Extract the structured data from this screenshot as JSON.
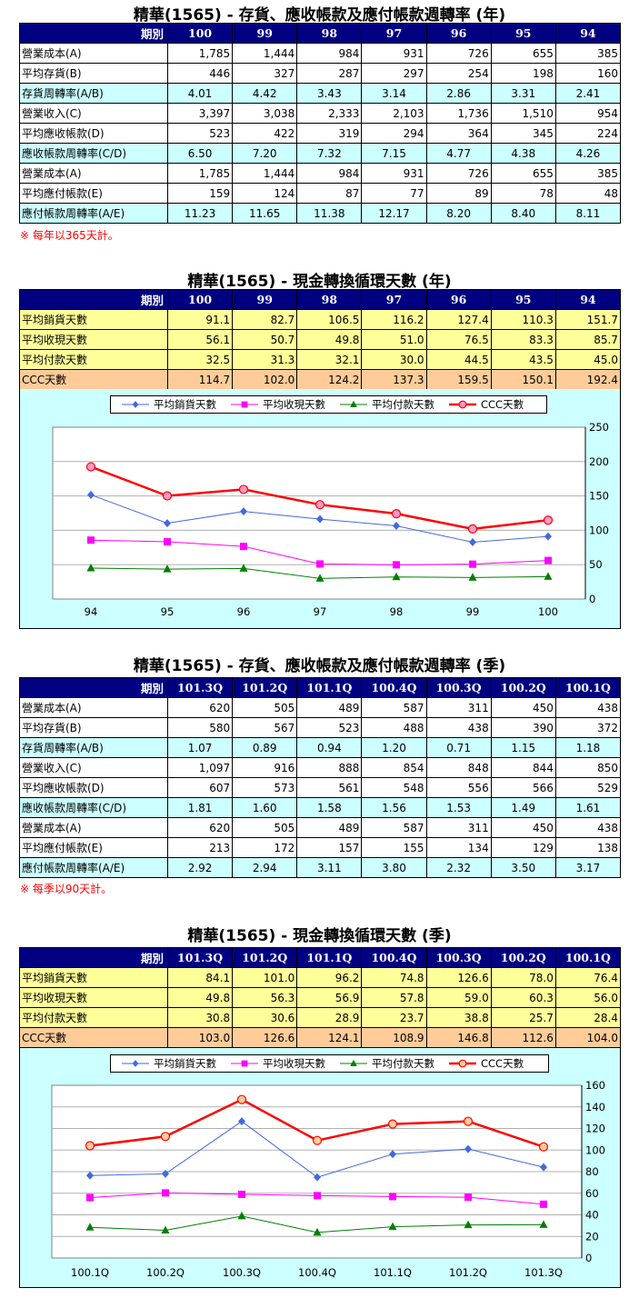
{
  "sections": {
    "annual_turnover": {
      "title": "精華(1565) -  存貨、應收帳款及應付帳款週轉率 (年)",
      "corner_label": "期別",
      "columns": [
        "100",
        "99",
        "98",
        "97",
        "96",
        "95",
        "94"
      ],
      "rows": [
        {
          "label": "營業成本(A)",
          "values": [
            "1,785",
            "1,444",
            "984",
            "931",
            "726",
            "655",
            "385"
          ],
          "type": "plain"
        },
        {
          "label": "平均存貨(B)",
          "values": [
            "446",
            "327",
            "287",
            "297",
            "254",
            "198",
            "160"
          ],
          "type": "plain"
        },
        {
          "label": "存貨周轉率(A/B)",
          "values": [
            "4.01",
            "4.42",
            "3.43",
            "3.14",
            "2.86",
            "3.31",
            "2.41"
          ],
          "type": "ratio"
        },
        {
          "label": "營業收入(C)",
          "values": [
            "3,397",
            "3,038",
            "2,333",
            "2,103",
            "1,736",
            "1,510",
            "954"
          ],
          "type": "plain"
        },
        {
          "label": "平均應收帳款(D)",
          "values": [
            "523",
            "422",
            "319",
            "294",
            "364",
            "345",
            "224"
          ],
          "type": "plain"
        },
        {
          "label": "應收帳款周轉率(C/D)",
          "values": [
            "6.50",
            "7.20",
            "7.32",
            "7.15",
            "4.77",
            "4.38",
            "4.26"
          ],
          "type": "ratio"
        },
        {
          "label": "營業成本(A)",
          "values": [
            "1,785",
            "1,444",
            "984",
            "931",
            "726",
            "655",
            "385"
          ],
          "type": "plain"
        },
        {
          "label": "平均應付帳款(E)",
          "values": [
            "159",
            "124",
            "87",
            "77",
            "89",
            "78",
            "48"
          ],
          "type": "plain"
        },
        {
          "label": "應付帳款周轉率(A/E)",
          "values": [
            "11.23",
            "11.65",
            "11.38",
            "12.17",
            "8.20",
            "8.40",
            "8.11"
          ],
          "type": "ratio"
        }
      ],
      "note": "※ 每年以365天計。"
    },
    "annual_ccc": {
      "title": "精華(1565) -  現金轉換循環天數 (年)",
      "corner_label": "期別",
      "columns": [
        "100",
        "99",
        "98",
        "97",
        "96",
        "95",
        "94"
      ],
      "rows": [
        {
          "label": "平均銷貨天數",
          "values": [
            "91.1",
            "82.7",
            "106.5",
            "116.2",
            "127.4",
            "110.3",
            "151.7"
          ],
          "type": "yellow"
        },
        {
          "label": "平均收現天數",
          "values": [
            "56.1",
            "50.7",
            "49.8",
            "51.0",
            "76.5",
            "83.3",
            "85.7"
          ],
          "type": "yellow"
        },
        {
          "label": "平均付款天數",
          "values": [
            "32.5",
            "31.3",
            "32.1",
            "30.0",
            "44.5",
            "43.5",
            "45.0"
          ],
          "type": "yellow"
        },
        {
          "label": "CCC天數",
          "values": [
            "114.7",
            "102.0",
            "124.2",
            "137.3",
            "159.5",
            "150.1",
            "192.4"
          ],
          "type": "orange"
        }
      ]
    },
    "quarterly_turnover": {
      "title": "精華(1565) -  存貨、應收帳款及應付帳款週轉率 (季)",
      "corner_label": "期別",
      "columns": [
        "101.3Q",
        "101.2Q",
        "101.1Q",
        "100.4Q",
        "100.3Q",
        "100.2Q",
        "100.1Q"
      ],
      "rows": [
        {
          "label": "營業成本(A)",
          "values": [
            "620",
            "505",
            "489",
            "587",
            "311",
            "450",
            "438"
          ],
          "type": "plain"
        },
        {
          "label": "平均存貨(B)",
          "values": [
            "580",
            "567",
            "523",
            "488",
            "438",
            "390",
            "372"
          ],
          "type": "plain"
        },
        {
          "label": "存貨周轉率(A/B)",
          "values": [
            "1.07",
            "0.89",
            "0.94",
            "1.20",
            "0.71",
            "1.15",
            "1.18"
          ],
          "type": "ratio"
        },
        {
          "label": "營業收入(C)",
          "values": [
            "1,097",
            "916",
            "888",
            "854",
            "848",
            "844",
            "850"
          ],
          "type": "plain"
        },
        {
          "label": "平均應收帳款(D)",
          "values": [
            "607",
            "573",
            "561",
            "548",
            "556",
            "566",
            "529"
          ],
          "type": "plain"
        },
        {
          "label": "應收帳款周轉率(C/D)",
          "values": [
            "1.81",
            "1.60",
            "1.58",
            "1.56",
            "1.53",
            "1.49",
            "1.61"
          ],
          "type": "ratio"
        },
        {
          "label": "營業成本(A)",
          "values": [
            "620",
            "505",
            "489",
            "587",
            "311",
            "450",
            "438"
          ],
          "type": "plain"
        },
        {
          "label": "平均應付帳款(E)",
          "values": [
            "213",
            "172",
            "157",
            "155",
            "134",
            "129",
            "138"
          ],
          "type": "plain"
        },
        {
          "label": "應付帳款周轉率(A/E)",
          "values": [
            "2.92",
            "2.94",
            "3.11",
            "3.80",
            "2.32",
            "3.50",
            "3.17"
          ],
          "type": "ratio"
        }
      ],
      "note": "※ 每季以90天計。"
    },
    "quarterly_ccc": {
      "title": "精華(1565) -  現金轉換循環天數 (季)",
      "corner_label": "期別",
      "columns": [
        "101.3Q",
        "101.2Q",
        "101.1Q",
        "100.4Q",
        "100.3Q",
        "100.2Q",
        "100.1Q"
      ],
      "rows": [
        {
          "label": "平均銷貨天數",
          "values": [
            "84.1",
            "101.0",
            "96.2",
            "74.8",
            "126.6",
            "78.0",
            "76.4"
          ],
          "type": "yellow"
        },
        {
          "label": "平均收現天數",
          "values": [
            "49.8",
            "56.3",
            "56.9",
            "57.8",
            "59.0",
            "60.3",
            "56.0"
          ],
          "type": "yellow"
        },
        {
          "label": "平均付款天數",
          "values": [
            "30.8",
            "30.6",
            "28.9",
            "23.7",
            "38.8",
            "25.7",
            "28.4"
          ],
          "type": "yellow"
        },
        {
          "label": "CCC天數",
          "values": [
            "103.0",
            "126.6",
            "124.1",
            "108.9",
            "146.8",
            "112.6",
            "104.0"
          ],
          "type": "orange"
        }
      ]
    }
  },
  "colors": {
    "header_bg": "#000080",
    "ratio_row_bg": "#ccffff",
    "yellow_row_bg": "#ffff99",
    "orange_row_bg": "#ffcc99",
    "chart_bg": "#ccffff",
    "note_color": "#ff0000"
  },
  "chart_data": [
    {
      "type": "line",
      "title": "",
      "categories": [
        "94",
        "95",
        "96",
        "97",
        "98",
        "99",
        "100"
      ],
      "series": [
        {
          "name": "平均銷貨天數",
          "values": [
            151.7,
            110.3,
            127.4,
            116.2,
            106.5,
            82.7,
            91.1
          ],
          "color": "#4169e1",
          "marker": "diamond",
          "marker_fill": "#4169e1",
          "line_width": 1
        },
        {
          "name": "平均收現天數",
          "values": [
            85.7,
            83.3,
            76.5,
            51.0,
            49.8,
            50.7,
            56.1
          ],
          "color": "#ff00ff",
          "marker": "square",
          "marker_fill": "#ff00ff",
          "line_width": 1
        },
        {
          "name": "平均付款天數",
          "values": [
            45.0,
            43.5,
            44.5,
            30.0,
            32.1,
            31.3,
            32.5
          ],
          "color": "#008000",
          "marker": "triangle",
          "marker_fill": "#008000",
          "line_width": 1
        },
        {
          "name": "CCC天數",
          "values": [
            192.4,
            150.1,
            159.5,
            137.3,
            124.2,
            102.0,
            114.7
          ],
          "color": "#ff0000",
          "marker": "circle",
          "marker_fill": "#ff99cc",
          "line_width": 2.5
        }
      ],
      "xlabel": "",
      "ylabel": "",
      "ylim": [
        0,
        250
      ],
      "yticks": [
        0,
        50,
        100,
        150,
        200,
        250
      ],
      "y_axis_position": "right",
      "grid": true,
      "legend_position": "top"
    },
    {
      "type": "line",
      "title": "",
      "categories": [
        "100.1Q",
        "100.2Q",
        "100.3Q",
        "100.4Q",
        "101.1Q",
        "101.2Q",
        "101.3Q"
      ],
      "series": [
        {
          "name": "平均銷貨天數",
          "values": [
            76.4,
            78.0,
            126.6,
            74.8,
            96.2,
            101.0,
            84.1
          ],
          "color": "#4169e1",
          "marker": "diamond",
          "marker_fill": "#4169e1",
          "line_width": 1
        },
        {
          "name": "平均收現天數",
          "values": [
            56.0,
            60.3,
            59.0,
            57.8,
            56.9,
            56.3,
            49.8
          ],
          "color": "#ff00ff",
          "marker": "square",
          "marker_fill": "#ff00ff",
          "line_width": 1
        },
        {
          "name": "平均付款天數",
          "values": [
            28.4,
            25.7,
            38.8,
            23.7,
            28.9,
            30.6,
            30.8
          ],
          "color": "#008000",
          "marker": "triangle",
          "marker_fill": "#008000",
          "line_width": 1
        },
        {
          "name": "CCC天數",
          "values": [
            104.0,
            112.6,
            146.8,
            108.9,
            124.1,
            126.6,
            103.0
          ],
          "color": "#ff0000",
          "marker": "circle",
          "marker_fill": "#ffcc99",
          "line_width": 2.5
        }
      ],
      "xlabel": "",
      "ylabel": "",
      "ylim": [
        0,
        160
      ],
      "yticks": [
        0,
        20,
        40,
        60,
        80,
        100,
        120,
        140,
        160
      ],
      "y_axis_position": "right",
      "grid": true,
      "legend_position": "top"
    }
  ]
}
